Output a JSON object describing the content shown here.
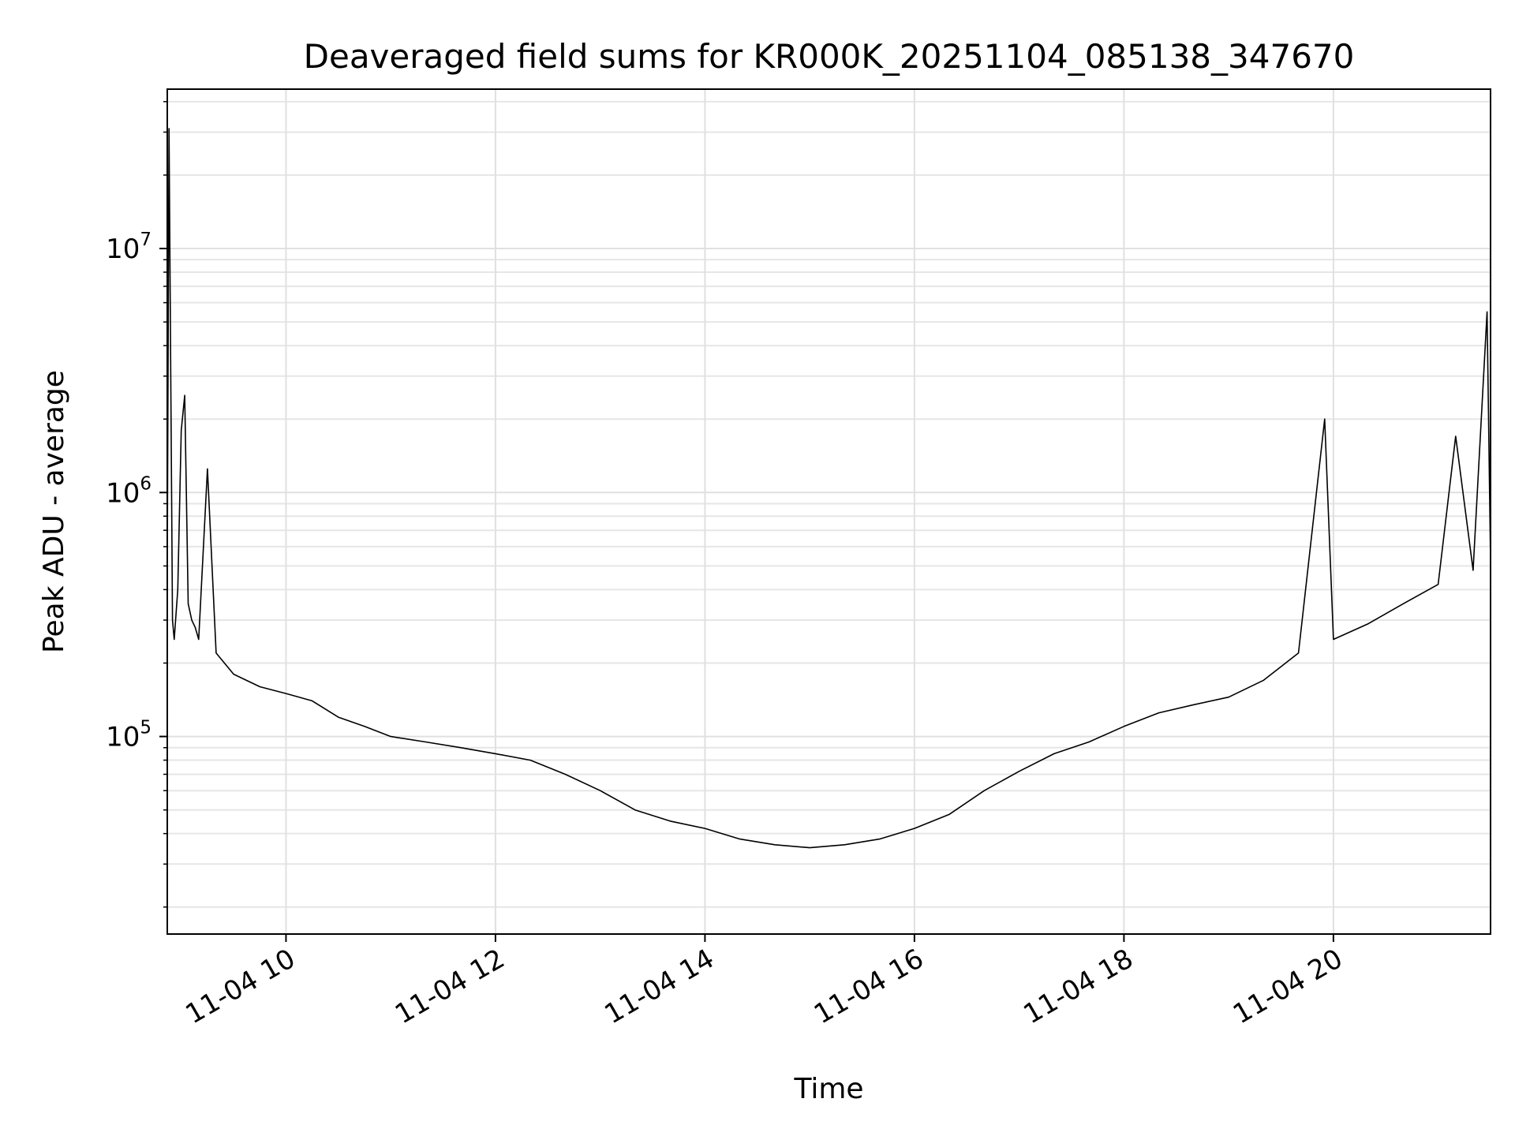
{
  "chart_data": {
    "type": "line",
    "title": "Deaveraged field sums for KR000K_20251104_085138_347670",
    "xlabel": "Time",
    "ylabel": "Peak ADU - average",
    "y_scale": "log",
    "ylim": [
      15500,
      45000000
    ],
    "xlim": [
      "2025-11-04 08:52",
      "2025-11-04 21:30"
    ],
    "grid": true,
    "grid_minor": true,
    "x_ticks": [
      {
        "time": "2025-11-04 10:00",
        "label": "11-04 10"
      },
      {
        "time": "2025-11-04 12:00",
        "label": "11-04 12"
      },
      {
        "time": "2025-11-04 14:00",
        "label": "11-04 14"
      },
      {
        "time": "2025-11-04 16:00",
        "label": "11-04 16"
      },
      {
        "time": "2025-11-04 18:00",
        "label": "11-04 18"
      },
      {
        "time": "2025-11-04 20:00",
        "label": "11-04 20"
      }
    ],
    "y_ticks": [
      {
        "value": 100000,
        "base": "10",
        "exp": "5"
      },
      {
        "value": 1000000,
        "base": "10",
        "exp": "6"
      },
      {
        "value": 10000000,
        "base": "10",
        "exp": "7"
      }
    ],
    "line_color": "#000000",
    "series": [
      {
        "x": [
          "2025-11-04 08:52",
          "2025-11-04 08:53",
          "2025-11-04 08:55",
          "2025-11-04 08:56",
          "2025-11-04 08:58",
          "2025-11-04 09:00",
          "2025-11-04 09:02",
          "2025-11-04 09:04",
          "2025-11-04 09:06",
          "2025-11-04 09:08",
          "2025-11-04 09:10",
          "2025-11-04 09:15",
          "2025-11-04 09:20",
          "2025-11-04 09:30",
          "2025-11-04 09:45",
          "2025-11-04 10:00",
          "2025-11-04 10:15",
          "2025-11-04 10:30",
          "2025-11-04 10:45",
          "2025-11-04 11:00",
          "2025-11-04 11:20",
          "2025-11-04 11:40",
          "2025-11-04 12:00",
          "2025-11-04 12:20",
          "2025-11-04 12:40",
          "2025-11-04 13:00",
          "2025-11-04 13:20",
          "2025-11-04 13:40",
          "2025-11-04 14:00",
          "2025-11-04 14:20",
          "2025-11-04 14:40",
          "2025-11-04 15:00",
          "2025-11-04 15:20",
          "2025-11-04 15:40",
          "2025-11-04 16:00",
          "2025-11-04 16:20",
          "2025-11-04 16:40",
          "2025-11-04 17:00",
          "2025-11-04 17:20",
          "2025-11-04 17:40",
          "2025-11-04 18:00",
          "2025-11-04 18:20",
          "2025-11-04 18:40",
          "2025-11-04 19:00",
          "2025-11-04 19:20",
          "2025-11-04 19:40",
          "2025-11-04 19:55",
          "2025-11-04 20:00",
          "2025-11-04 20:20",
          "2025-11-04 20:40",
          "2025-11-04 21:00",
          "2025-11-04 21:10",
          "2025-11-04 21:20",
          "2025-11-04 21:28",
          "2025-11-04 21:30"
        ],
        "values": [
          500000,
          31000000,
          300000,
          250000,
          400000,
          1800000,
          2500000,
          350000,
          300000,
          280000,
          250000,
          1250000,
          220000,
          180000,
          160000,
          150000,
          140000,
          120000,
          110000,
          100000,
          95000,
          90000,
          85000,
          80000,
          70000,
          60000,
          50000,
          45000,
          42000,
          38000,
          36000,
          35000,
          36000,
          38000,
          42000,
          48000,
          60000,
          72000,
          85000,
          95000,
          110000,
          125000,
          135000,
          145000,
          170000,
          220000,
          2000000,
          250000,
          290000,
          350000,
          420000,
          1700000,
          480000,
          5500000,
          520000
        ]
      }
    ]
  }
}
